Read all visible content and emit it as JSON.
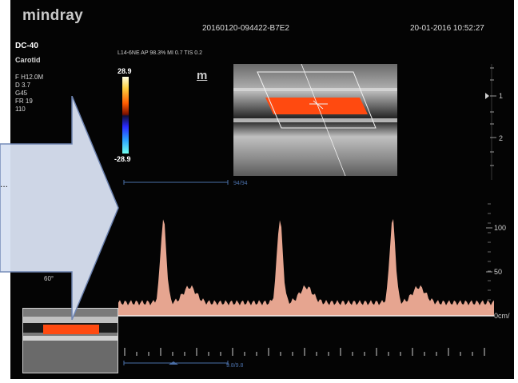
{
  "header": {
    "brand": "mindray",
    "study_id": "20160120-094422-B7E2",
    "datetime": "20-01-2016  10:52:27"
  },
  "left_panel": {
    "probe": "DC-40",
    "preset": "Carotid",
    "params": [
      "F H12.0M",
      "D 3.7",
      "G45",
      "FR 19",
      "  110",
      "  ",
      "  ",
      "  "
    ]
  },
  "bmode": {
    "sub_params": "L14-6NE  AP 98.3%  MI 0.7  TIS 0.2",
    "depth_marks": [
      "1",
      "2"
    ]
  },
  "color_scale": {
    "top": "28.9",
    "bottom": "-28.9"
  },
  "m_label": "m",
  "frame_counter": "94/94",
  "time_counter": "9.8/9.8",
  "angle_label": "60°",
  "ellipsis": "...",
  "spectral": {
    "scale_labels": [
      "100",
      "50",
      "0cm/"
    ],
    "scale_values": [
      100,
      50,
      0
    ],
    "peak_times": [
      0.12,
      0.43,
      0.73
    ],
    "peak_velocity": 95,
    "baseline_velocity": 15
  },
  "colors": {
    "spectrum": "#ffb7a0",
    "flow": "#ff4a10",
    "arrow_fill": "#d9e2f3",
    "arrow_stroke": "#6f86b5",
    "counter": "#4a6fa8"
  },
  "icons": {
    "navigation": "arrow-right-icon",
    "focus": "focus-marker-icon"
  }
}
